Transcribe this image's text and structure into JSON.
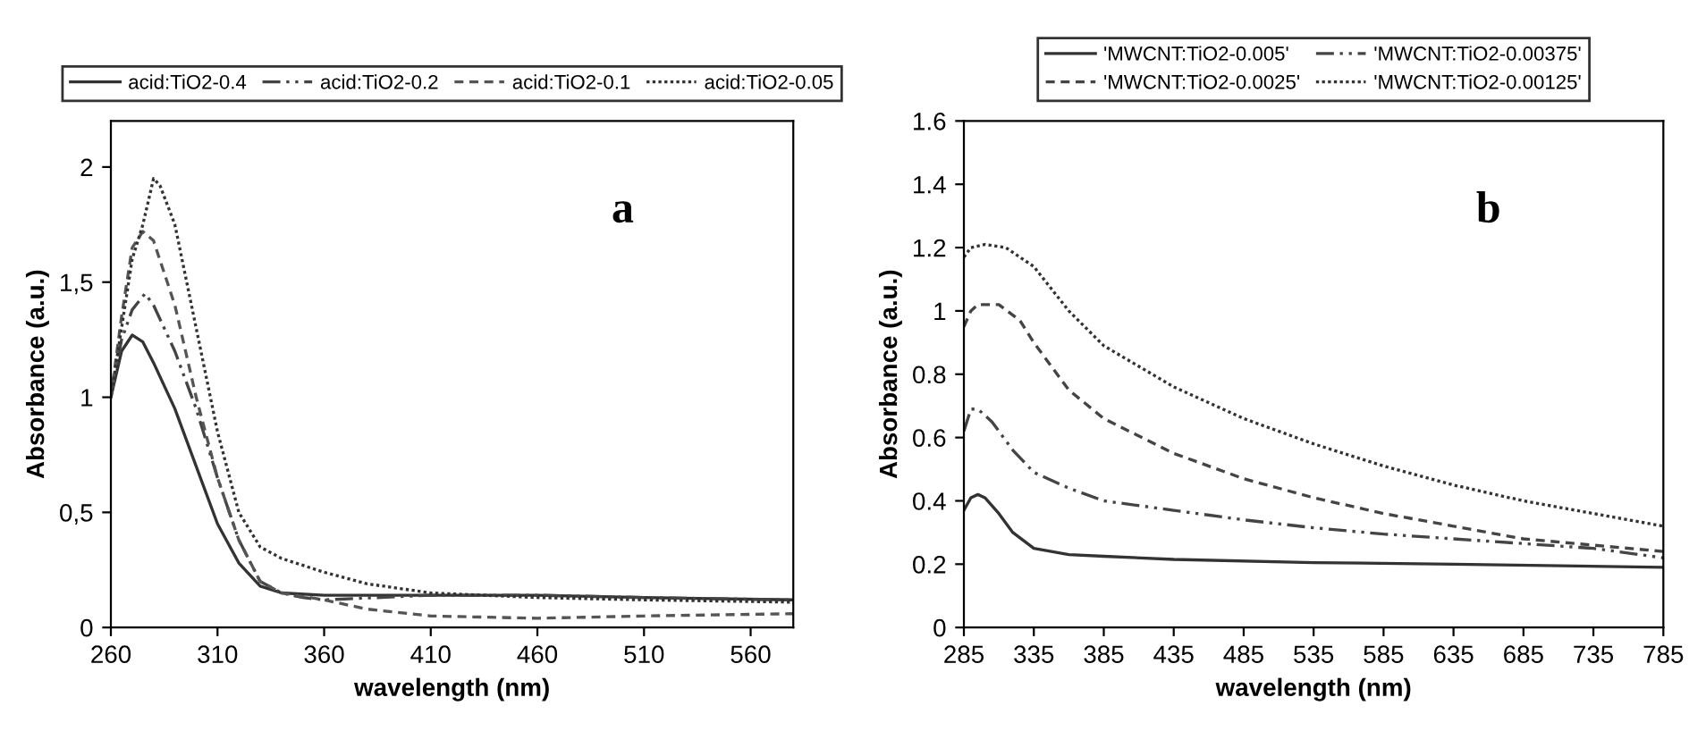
{
  "chart_data": [
    {
      "type": "line",
      "xlabel": "wavelength (nm)",
      "ylabel": "Absorbance (a.u.)",
      "annotations": [
        "a"
      ],
      "legend": "top",
      "grid": false,
      "xlim": [
        260,
        580
      ],
      "xticks": [
        260,
        310,
        360,
        410,
        460,
        510,
        560
      ],
      "ylim": [
        0,
        2.2
      ],
      "yticks": [
        0,
        {
          "value": 0.5,
          "label": "0,5"
        },
        1,
        {
          "value": 1.5,
          "label": "1,5"
        },
        2
      ],
      "series": [
        {
          "name": "acid:TiO2-0.4",
          "color": "#333333",
          "line_style": "solid",
          "x": [
            260,
            265,
            270,
            275,
            280,
            290,
            300,
            310,
            320,
            330,
            340,
            360,
            410,
            460,
            510,
            580
          ],
          "values": [
            1.0,
            1.2,
            1.27,
            1.24,
            1.15,
            0.95,
            0.7,
            0.45,
            0.28,
            0.18,
            0.15,
            0.14,
            0.14,
            0.14,
            0.13,
            0.12
          ]
        },
        {
          "name": "acid:TiO2-0.2",
          "color": "#444444",
          "line_style": "dashdot",
          "x": [
            260,
            265,
            270,
            276,
            280,
            290,
            300,
            310,
            320,
            330,
            340,
            350,
            360,
            410,
            460,
            510,
            580
          ],
          "values": [
            1.0,
            1.25,
            1.38,
            1.45,
            1.4,
            1.2,
            0.95,
            0.65,
            0.38,
            0.2,
            0.15,
            0.13,
            0.12,
            0.14,
            0.14,
            0.13,
            0.12
          ]
        },
        {
          "name": "acid:TiO2-0.1",
          "color": "#555555",
          "line_style": "dashed",
          "x": [
            260,
            265,
            270,
            275,
            280,
            290,
            300,
            310,
            320,
            330,
            340,
            360,
            380,
            410,
            460,
            510,
            580
          ],
          "values": [
            1.0,
            1.35,
            1.65,
            1.72,
            1.68,
            1.4,
            1.0,
            0.65,
            0.38,
            0.2,
            0.15,
            0.12,
            0.08,
            0.05,
            0.04,
            0.05,
            0.06
          ]
        },
        {
          "name": "acid:TiO2-0.05",
          "color": "#333333",
          "line_style": "dotted",
          "x": [
            260,
            265,
            270,
            275,
            280,
            283,
            290,
            300,
            310,
            320,
            330,
            340,
            360,
            380,
            410,
            460,
            510,
            580
          ],
          "values": [
            1.0,
            1.3,
            1.6,
            1.75,
            1.95,
            1.92,
            1.75,
            1.3,
            0.85,
            0.5,
            0.35,
            0.3,
            0.24,
            0.19,
            0.15,
            0.13,
            0.12,
            0.11
          ]
        }
      ]
    },
    {
      "type": "line",
      "xlabel": "wavelength (nm)",
      "ylabel": "Absorbance (a.u.)",
      "annotations": [
        "b"
      ],
      "legend": "top",
      "grid": false,
      "xlim": [
        285,
        785
      ],
      "xticks": [
        285,
        335,
        385,
        435,
        485,
        535,
        585,
        635,
        685,
        735,
        785
      ],
      "ylim": [
        0,
        1.6
      ],
      "yticks": [
        0,
        0.2,
        0.4,
        0.6,
        0.8,
        1,
        1.2,
        1.4,
        1.6
      ],
      "series": [
        {
          "name": "'MWCNT:TiO2-0.005'",
          "color": "#333333",
          "line_style": "solid",
          "x": [
            285,
            290,
            295,
            300,
            310,
            320,
            335,
            360,
            385,
            435,
            535,
            635,
            785
          ],
          "values": [
            0.37,
            0.41,
            0.42,
            0.41,
            0.36,
            0.3,
            0.25,
            0.23,
            0.225,
            0.215,
            0.205,
            0.2,
            0.19
          ]
        },
        {
          "name": "'MWCNT:TiO2-0.00375'",
          "color": "#444444",
          "line_style": "dashdot",
          "x": [
            285,
            290,
            295,
            305,
            320,
            335,
            360,
            385,
            435,
            485,
            535,
            585,
            635,
            685,
            735,
            785
          ],
          "values": [
            0.62,
            0.69,
            0.69,
            0.65,
            0.56,
            0.49,
            0.44,
            0.4,
            0.37,
            0.34,
            0.315,
            0.295,
            0.28,
            0.265,
            0.25,
            0.22
          ]
        },
        {
          "name": "'MWCNT:TiO2-0.0025'",
          "color": "#444444",
          "line_style": "dashed",
          "x": [
            285,
            290,
            295,
            310,
            325,
            335,
            360,
            385,
            435,
            485,
            535,
            585,
            635,
            685,
            735,
            785
          ],
          "values": [
            0.95,
            1.0,
            1.02,
            1.02,
            0.97,
            0.9,
            0.75,
            0.66,
            0.55,
            0.47,
            0.41,
            0.36,
            0.32,
            0.28,
            0.26,
            0.24
          ]
        },
        {
          "name": "'MWCNT:TiO2-0.00125'",
          "color": "#333333",
          "line_style": "dotted",
          "x": [
            285,
            290,
            300,
            315,
            335,
            360,
            385,
            435,
            485,
            535,
            585,
            635,
            685,
            735,
            785
          ],
          "values": [
            1.17,
            1.2,
            1.21,
            1.2,
            1.14,
            1.0,
            0.89,
            0.76,
            0.66,
            0.58,
            0.51,
            0.45,
            0.4,
            0.36,
            0.32
          ]
        }
      ]
    }
  ]
}
